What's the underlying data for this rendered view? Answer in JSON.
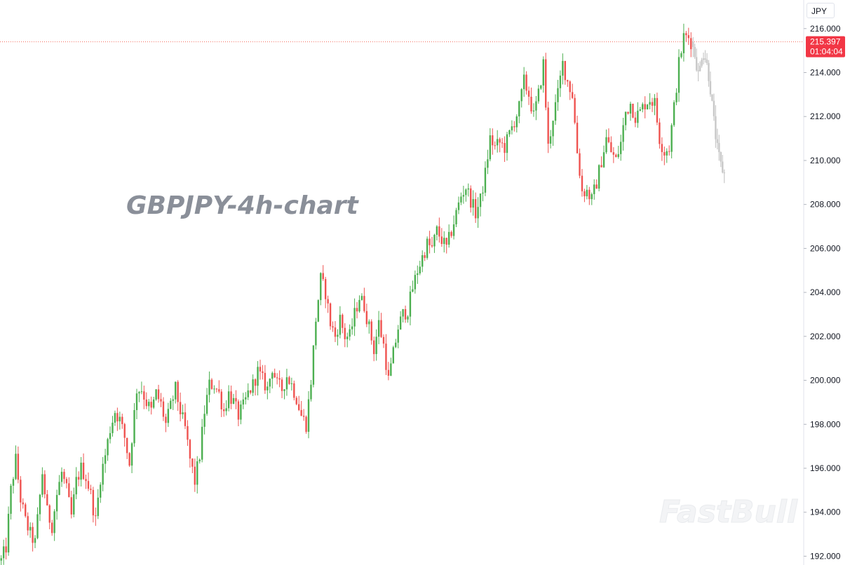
{
  "chart_data": {
    "type": "candlestick",
    "title": "GBPJPY-4h-chart",
    "currency": "JPY",
    "ylim": [
      191.6,
      217.3
    ],
    "y_ticks": [
      "192.000",
      "194.000",
      "196.000",
      "198.000",
      "200.000",
      "202.000",
      "204.000",
      "206.000",
      "208.000",
      "210.000",
      "212.000",
      "214.000",
      "216.000"
    ],
    "y_tick_values": [
      192,
      194,
      196,
      198,
      200,
      202,
      204,
      206,
      208,
      210,
      212,
      214,
      216
    ],
    "current_price": 215.397,
    "current_price_label": "215.397",
    "countdown_label": "01:04:04",
    "up_color": "#4caf50",
    "down_color": "#ef5350",
    "projection_color": "#c8c8c8",
    "price_tag_color": "#f23645",
    "price_line_color": "#f2695c",
    "path_anchors": [
      [
        0,
        191.8
      ],
      [
        2,
        192.4
      ],
      [
        4,
        195.0
      ],
      [
        6,
        196.4
      ],
      [
        8,
        194.6
      ],
      [
        10,
        193.6
      ],
      [
        12,
        193.0
      ],
      [
        14,
        192.6
      ],
      [
        17,
        195.8
      ],
      [
        19,
        194.0
      ],
      [
        21,
        193.4
      ],
      [
        23,
        194.8
      ],
      [
        25,
        195.8
      ],
      [
        27,
        195.0
      ],
      [
        29,
        193.8
      ],
      [
        31,
        195.4
      ],
      [
        33,
        196.0
      ],
      [
        35,
        195.6
      ],
      [
        37,
        194.8
      ],
      [
        39,
        193.6
      ],
      [
        41,
        195.6
      ],
      [
        43,
        196.6
      ],
      [
        45,
        197.8
      ],
      [
        47,
        198.6
      ],
      [
        49,
        198.2
      ],
      [
        51,
        197.4
      ],
      [
        53,
        196.2
      ],
      [
        54,
        197.4
      ],
      [
        56,
        199.6
      ],
      [
        58,
        199.6
      ],
      [
        60,
        199.0
      ],
      [
        62,
        198.6
      ],
      [
        64,
        199.4
      ],
      [
        66,
        198.9
      ],
      [
        68,
        198.0
      ],
      [
        70,
        198.8
      ],
      [
        72,
        199.6
      ],
      [
        74,
        198.6
      ],
      [
        76,
        197.8
      ],
      [
        78,
        196.4
      ],
      [
        80,
        195.4
      ],
      [
        82,
        196.6
      ],
      [
        84,
        198.6
      ],
      [
        86,
        199.8
      ],
      [
        88,
        199.8
      ],
      [
        90,
        199.4
      ],
      [
        92,
        198.6
      ],
      [
        94,
        199.4
      ],
      [
        96,
        199.0
      ],
      [
        98,
        198.4
      ],
      [
        100,
        198.8
      ],
      [
        102,
        199.4
      ],
      [
        104,
        199.8
      ],
      [
        106,
        200.4
      ],
      [
        108,
        200.0
      ],
      [
        110,
        199.6
      ],
      [
        112,
        200.6
      ],
      [
        114,
        199.8
      ],
      [
        116,
        199.6
      ],
      [
        118,
        200.2
      ],
      [
        120,
        199.8
      ],
      [
        122,
        199.2
      ],
      [
        124,
        198.4
      ],
      [
        126,
        198.0
      ],
      [
        128,
        200.0
      ],
      [
        130,
        202.8
      ],
      [
        132,
        204.6
      ],
      [
        134,
        204.0
      ],
      [
        136,
        202.6
      ],
      [
        138,
        202.0
      ],
      [
        140,
        202.8
      ],
      [
        142,
        202.0
      ],
      [
        144,
        202.0
      ],
      [
        146,
        203.0
      ],
      [
        148,
        203.8
      ],
      [
        150,
        203.4
      ],
      [
        152,
        202.4
      ],
      [
        154,
        201.4
      ],
      [
        156,
        202.6
      ],
      [
        158,
        201.6
      ],
      [
        160,
        200.0
      ],
      [
        162,
        201.2
      ],
      [
        164,
        202.4
      ],
      [
        166,
        203.0
      ],
      [
        168,
        203.2
      ],
      [
        170,
        204.2
      ],
      [
        172,
        205.0
      ],
      [
        174,
        205.6
      ],
      [
        176,
        206.2
      ],
      [
        178,
        206.0
      ],
      [
        180,
        206.8
      ],
      [
        182,
        206.4
      ],
      [
        184,
        206.0
      ],
      [
        186,
        206.8
      ],
      [
        188,
        207.6
      ],
      [
        190,
        208.4
      ],
      [
        192,
        208.8
      ],
      [
        194,
        208.2
      ],
      [
        196,
        207.6
      ],
      [
        198,
        208.2
      ],
      [
        200,
        209.4
      ],
      [
        202,
        211.0
      ],
      [
        204,
        210.6
      ],
      [
        206,
        210.8
      ],
      [
        208,
        210.6
      ],
      [
        210,
        211.2
      ],
      [
        212,
        211.8
      ],
      [
        214,
        212.4
      ],
      [
        216,
        213.6
      ],
      [
        218,
        213.0
      ],
      [
        220,
        212.0
      ],
      [
        222,
        213.0
      ],
      [
        224,
        214.4
      ],
      [
        226,
        210.6
      ],
      [
        228,
        212.0
      ],
      [
        230,
        213.0
      ],
      [
        232,
        214.4
      ],
      [
        234,
        213.6
      ],
      [
        236,
        213.0
      ],
      [
        238,
        210.4
      ],
      [
        240,
        208.6
      ],
      [
        242,
        208.6
      ],
      [
        244,
        208.2
      ],
      [
        246,
        209.0
      ],
      [
        248,
        210.0
      ],
      [
        250,
        211.0
      ],
      [
        252,
        210.4
      ],
      [
        254,
        210.0
      ],
      [
        256,
        210.8
      ],
      [
        258,
        212.2
      ],
      [
        260,
        212.6
      ],
      [
        262,
        212.0
      ],
      [
        264,
        212.2
      ],
      [
        266,
        212.6
      ],
      [
        268,
        212.8
      ],
      [
        270,
        212.6
      ],
      [
        272,
        211.0
      ],
      [
        274,
        210.4
      ],
      [
        276,
        210.6
      ],
      [
        278,
        212.4
      ],
      [
        280,
        214.4
      ],
      [
        282,
        215.6
      ],
      [
        284,
        215.6
      ],
      [
        285,
        215.4
      ]
    ],
    "projection_anchors": [
      [
        285,
        215.4
      ],
      [
        287,
        214.8
      ],
      [
        289,
        213.8
      ],
      [
        291,
        215.0
      ],
      [
        293,
        214.6
      ],
      [
        295,
        213.6
      ],
      [
        297,
        212.0
      ],
      [
        299,
        210.6
      ],
      [
        301,
        209.8
      ],
      [
        303,
        209.4
      ]
    ],
    "candle_count": 286,
    "projection_count": 19
  },
  "brand": "FastBull"
}
